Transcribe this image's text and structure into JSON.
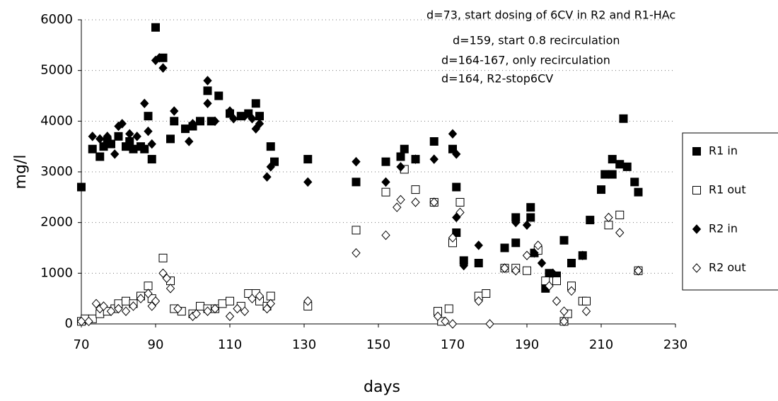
{
  "chart_data": {
    "type": "scatter",
    "annotations": [
      "d=73, start dosing of 6CV in R2 and R1-HAc",
      "d=159, start 0.8 recirculation",
      "d=164-167, only recirculation",
      "d=164, R2-stop6CV"
    ],
    "xlabel": "days",
    "ylabel": "mg/l",
    "xlim": [
      70,
      230
    ],
    "xticks": [
      70,
      90,
      110,
      130,
      150,
      170,
      190,
      210,
      230
    ],
    "ylim": [
      0,
      6000
    ],
    "yticks": [
      0,
      1000,
      2000,
      3000,
      4000,
      5000,
      6000
    ],
    "grid": true,
    "legend": "right",
    "series": [
      {
        "name": "R1 in",
        "marker": "square",
        "filled": true,
        "color": "#000000",
        "x": [
          70,
          73,
          75,
          76,
          77,
          78,
          80,
          82,
          83,
          84,
          86,
          87,
          88,
          89,
          90,
          92,
          94,
          95,
          98,
          100,
          102,
          104,
          105,
          107,
          110,
          113,
          115,
          117,
          118,
          121,
          122,
          131,
          144,
          152,
          156,
          157,
          160,
          165,
          170,
          171,
          171,
          173,
          177,
          184,
          187,
          187,
          191,
          191,
          192,
          195,
          196,
          198,
          200,
          202,
          205,
          207,
          210,
          211,
          213,
          213,
          215,
          216,
          217,
          219,
          220
        ],
        "values": [
          2700,
          3450,
          3300,
          3500,
          3600,
          3550,
          3700,
          3500,
          3600,
          3450,
          3500,
          3450,
          4100,
          3250,
          5850,
          5250,
          3650,
          4000,
          3850,
          3900,
          4000,
          4600,
          4000,
          4500,
          4150,
          4100,
          4150,
          4350,
          4100,
          3500,
          3200,
          3250,
          2800,
          3200,
          3300,
          3450,
          3250,
          3600,
          3450,
          2700,
          1800,
          1250,
          1200,
          1500,
          2100,
          1600,
          2300,
          2100,
          1400,
          700,
          1000,
          950,
          1650,
          1200,
          1350,
          2050,
          2650,
          2950,
          3250,
          2950,
          3150,
          4050,
          3100,
          2800,
          2600
        ]
      },
      {
        "name": "R1 out",
        "marker": "square",
        "filled": false,
        "color": "#000000",
        "x": [
          70,
          71,
          73,
          75,
          77,
          79,
          80,
          82,
          84,
          86,
          88,
          89,
          92,
          94,
          95,
          97,
          100,
          102,
          104,
          106,
          108,
          110,
          113,
          115,
          117,
          118,
          120,
          121,
          131,
          144,
          152,
          157,
          160,
          165,
          166,
          167,
          169,
          170,
          172,
          177,
          179,
          184,
          187,
          190,
          193,
          195,
          198,
          200,
          201,
          202,
          205,
          206,
          212,
          215,
          220
        ],
        "values": [
          50,
          100,
          100,
          200,
          250,
          300,
          400,
          450,
          400,
          550,
          750,
          500,
          1300,
          850,
          300,
          250,
          200,
          350,
          300,
          300,
          400,
          450,
          350,
          600,
          600,
          450,
          350,
          550,
          350,
          1850,
          2600,
          3050,
          2650,
          2400,
          250,
          50,
          300,
          1600,
          2400,
          550,
          600,
          1100,
          1100,
          1050,
          1450,
          850,
          850,
          50,
          200,
          750,
          450,
          450,
          1950,
          2150,
          1050
        ]
      },
      {
        "name": "R2 in",
        "marker": "diamond",
        "filled": true,
        "color": "#000000",
        "x": [
          73,
          75,
          77,
          79,
          80,
          81,
          83,
          85,
          87,
          88,
          89,
          90,
          91,
          92,
          95,
          99,
          100,
          104,
          104,
          106,
          110,
          111,
          114,
          116,
          117,
          118,
          120,
          121,
          131,
          144,
          152,
          156,
          160,
          165,
          170,
          171,
          171,
          173,
          177,
          184,
          187,
          190,
          192,
          194,
          197,
          205,
          220
        ],
        "values": [
          3700,
          3650,
          3700,
          3350,
          3900,
          3950,
          3750,
          3700,
          4350,
          3800,
          3550,
          5200,
          5250,
          5050,
          4200,
          3600,
          3950,
          4800,
          4350,
          4000,
          4200,
          4050,
          4100,
          4050,
          3850,
          3950,
          2900,
          3100,
          2800,
          3200,
          2800,
          3100,
          3250,
          3250,
          3750,
          3350,
          2100,
          1150,
          1550,
          1100,
          2000,
          1950,
          1400,
          1200,
          1000,
          1350,
          1050
        ]
      },
      {
        "name": "R2 out",
        "marker": "diamond",
        "filled": false,
        "color": "#000000",
        "x": [
          70,
          72,
          74,
          75,
          76,
          78,
          80,
          82,
          84,
          86,
          88,
          89,
          90,
          92,
          93,
          94,
          96,
          100,
          101,
          104,
          106,
          110,
          112,
          114,
          116,
          118,
          120,
          121,
          131,
          144,
          152,
          155,
          156,
          160,
          165,
          166,
          168,
          170,
          170,
          172,
          177,
          180,
          184,
          187,
          190,
          193,
          196,
          198,
          200,
          200,
          202,
          206,
          212,
          215,
          220
        ],
        "values": [
          50,
          50,
          400,
          300,
          350,
          250,
          300,
          250,
          350,
          500,
          600,
          350,
          450,
          1000,
          900,
          700,
          300,
          150,
          200,
          250,
          300,
          150,
          300,
          250,
          500,
          550,
          300,
          400,
          450,
          1400,
          1750,
          2300,
          2450,
          2400,
          2400,
          150,
          50,
          0,
          1700,
          2200,
          450,
          0,
          1100,
          1050,
          1350,
          1550,
          750,
          450,
          250,
          50,
          650,
          250,
          2100,
          1800,
          1050
        ]
      }
    ]
  }
}
